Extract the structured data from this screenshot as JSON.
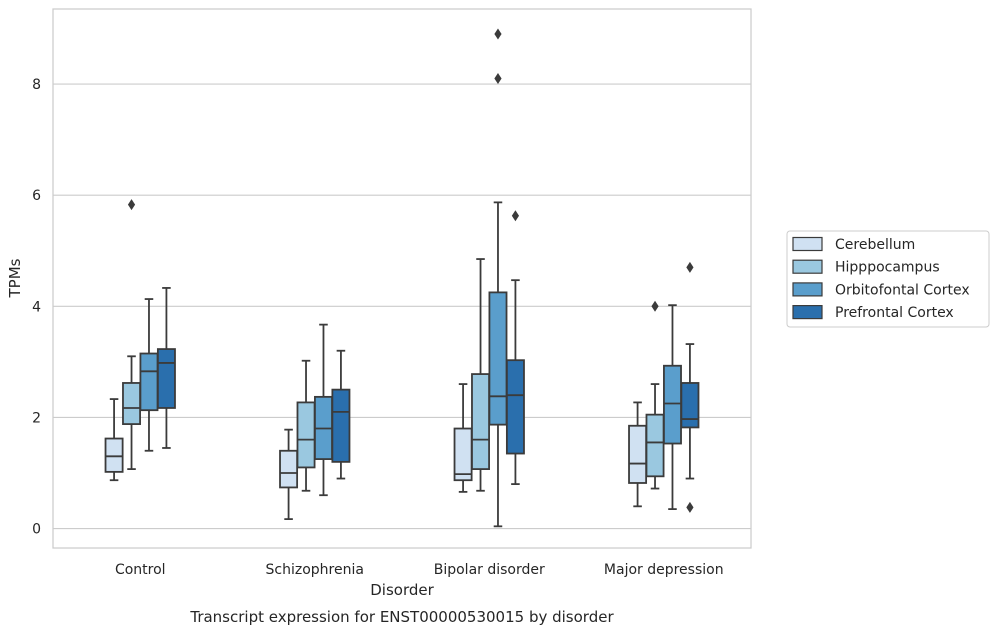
{
  "chart_data": {
    "type": "box",
    "title": "",
    "caption": "Transcript expression for ENST00000530015 by disorder",
    "xlabel": "Disorder",
    "ylabel": "TPMs",
    "ylim": [
      -0.35,
      9.35
    ],
    "yticks": [
      0,
      2,
      4,
      6,
      8
    ],
    "ytick_labels": [
      "0",
      "2",
      "4",
      "6",
      "8"
    ],
    "grid": "horizontal",
    "legend_position": "right",
    "categories": [
      "Control",
      "Schizophrenia",
      "Bipolar disorder",
      "Major depression"
    ],
    "series": [
      {
        "name": "Cerebellum",
        "color": "#d0e1f2",
        "boxes": [
          {
            "whisker_low": 0.87,
            "q1": 1.02,
            "median": 1.3,
            "q3": 1.62,
            "whisker_high": 2.33,
            "outliers": []
          },
          {
            "whisker_low": 0.17,
            "q1": 0.74,
            "median": 1.0,
            "q3": 1.4,
            "whisker_high": 1.78,
            "outliers": []
          },
          {
            "whisker_low": 0.66,
            "q1": 0.87,
            "median": 0.98,
            "q3": 1.8,
            "whisker_high": 2.6,
            "outliers": []
          },
          {
            "whisker_low": 0.4,
            "q1": 0.82,
            "median": 1.17,
            "q3": 1.85,
            "whisker_high": 2.27,
            "outliers": []
          }
        ]
      },
      {
        "name": "Hipppocampus",
        "color": "#9ac8e0",
        "boxes": [
          {
            "whisker_low": 1.07,
            "q1": 1.88,
            "median": 2.17,
            "q3": 2.62,
            "whisker_high": 3.1,
            "outliers": [
              5.83
            ]
          },
          {
            "whisker_low": 0.68,
            "q1": 1.1,
            "median": 1.6,
            "q3": 2.27,
            "whisker_high": 3.02,
            "outliers": []
          },
          {
            "whisker_low": 0.68,
            "q1": 1.07,
            "median": 1.6,
            "q3": 2.78,
            "whisker_high": 4.85,
            "outliers": []
          },
          {
            "whisker_low": 0.72,
            "q1": 0.94,
            "median": 1.55,
            "q3": 2.05,
            "whisker_high": 2.6,
            "outliers": [
              4.0
            ]
          }
        ]
      },
      {
        "name": "Orbitofontal Cortex",
        "color": "#5a9ecc",
        "boxes": [
          {
            "whisker_low": 1.4,
            "q1": 2.13,
            "median": 2.83,
            "q3": 3.15,
            "whisker_high": 4.13,
            "outliers": []
          },
          {
            "whisker_low": 0.6,
            "q1": 1.25,
            "median": 1.8,
            "q3": 2.37,
            "whisker_high": 3.67,
            "outliers": []
          },
          {
            "whisker_low": 0.04,
            "q1": 1.87,
            "median": 2.38,
            "q3": 4.25,
            "whisker_high": 5.87,
            "outliers": [
              8.9,
              8.1
            ]
          },
          {
            "whisker_low": 0.35,
            "q1": 1.53,
            "median": 2.25,
            "q3": 2.93,
            "whisker_high": 4.02,
            "outliers": []
          }
        ]
      },
      {
        "name": "Prefrontal Cortex",
        "color": "#2a6fad",
        "boxes": [
          {
            "whisker_low": 1.45,
            "q1": 2.17,
            "median": 2.98,
            "q3": 3.23,
            "whisker_high": 4.33,
            "outliers": []
          },
          {
            "whisker_low": 0.9,
            "q1": 1.2,
            "median": 2.1,
            "q3": 2.5,
            "whisker_high": 3.2,
            "outliers": []
          },
          {
            "whisker_low": 0.8,
            "q1": 1.35,
            "median": 2.4,
            "q3": 3.03,
            "whisker_high": 4.47,
            "outliers": [
              5.63
            ]
          },
          {
            "whisker_low": 0.9,
            "q1": 1.82,
            "median": 1.97,
            "q3": 2.62,
            "whisker_high": 3.32,
            "outliers": [
              4.7,
              0.38
            ]
          }
        ]
      }
    ]
  }
}
